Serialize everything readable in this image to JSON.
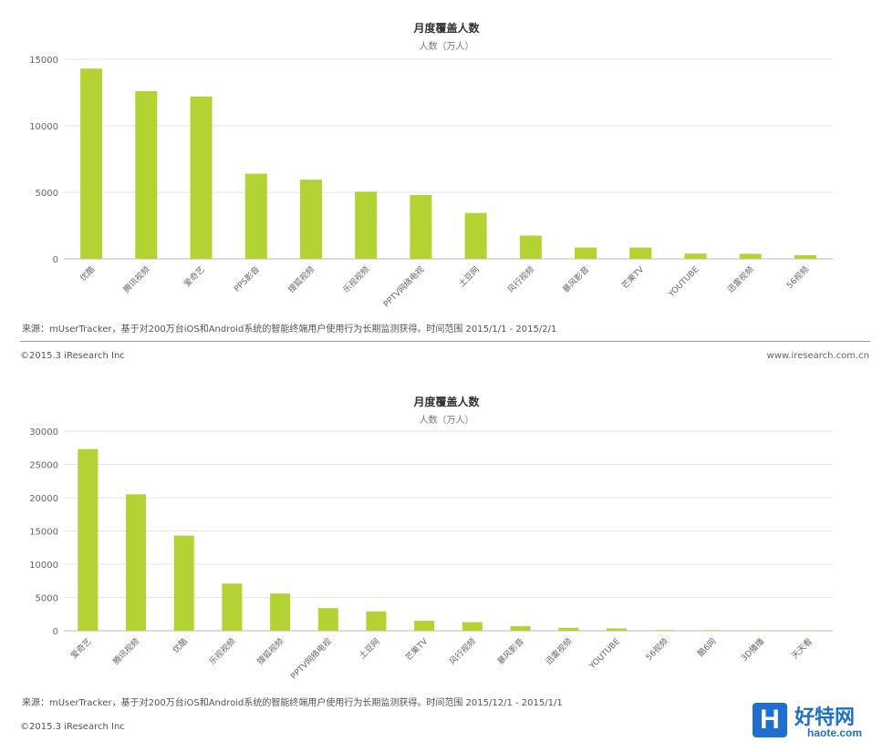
{
  "colors": {
    "bar": "#b3d334",
    "grid": "#e6e6e6",
    "axis": "#bbbbbb"
  },
  "chart_data": [
    {
      "type": "bar",
      "title": "月度覆盖人数",
      "subtitle": "人数（万人）",
      "ylim": [
        0,
        15000
      ],
      "yticks": [
        0,
        5000,
        10000,
        15000
      ],
      "categories": [
        "优酷",
        "腾讯视频",
        "爱奇艺",
        "PPS影音",
        "搜狐视频",
        "乐视视频",
        "PPTV网络电视",
        "土豆网",
        "风行视频",
        "暴风影音",
        "芒果TV",
        "YOUTUBE",
        "迅雷视频",
        "56视频"
      ],
      "values": [
        14300,
        12600,
        12200,
        6400,
        5950,
        5050,
        4800,
        3450,
        1750,
        850,
        850,
        400,
        380,
        280
      ],
      "grid": true,
      "source": "来源：mUserTracker，基于对200万台iOS和Android系统的智能终端用户使用行为长期监测获得。时间范围  2015/1/1 - 2015/2/1",
      "copyright": "©2015.3 iResearch Inc",
      "website": "www.iresearch.com.cn"
    },
    {
      "type": "bar",
      "title": "月度覆盖人数",
      "subtitle": "人数（万人）",
      "ylim": [
        0,
        30000
      ],
      "yticks": [
        0,
        5000,
        10000,
        15000,
        20000,
        25000,
        30000
      ],
      "categories": [
        "爱奇艺",
        "腾讯视频",
        "优酷",
        "乐视视频",
        "搜狐视频",
        "PPTV网络电视",
        "土豆网",
        "芒果TV",
        "风行视频",
        "暴风影音",
        "迅雷视频",
        "YOUTUBE",
        "56视频",
        "酷6网",
        "3D播播",
        "天天看"
      ],
      "values": [
        27300,
        20500,
        14300,
        7100,
        5600,
        3400,
        2900,
        1500,
        1300,
        700,
        450,
        350,
        100,
        80,
        60,
        50
      ],
      "grid": true,
      "source": "来源：mUserTracker，基于对200万台iOS和Android系统的智能终端用户使用行为长期监测获得。时间范围  2015/12/1 - 2015/1/1",
      "copyright": "©2015.3 iResearch Inc"
    }
  ],
  "logo": {
    "mark": "H",
    "name_cn": "好特网",
    "name_en": "haote.com"
  }
}
